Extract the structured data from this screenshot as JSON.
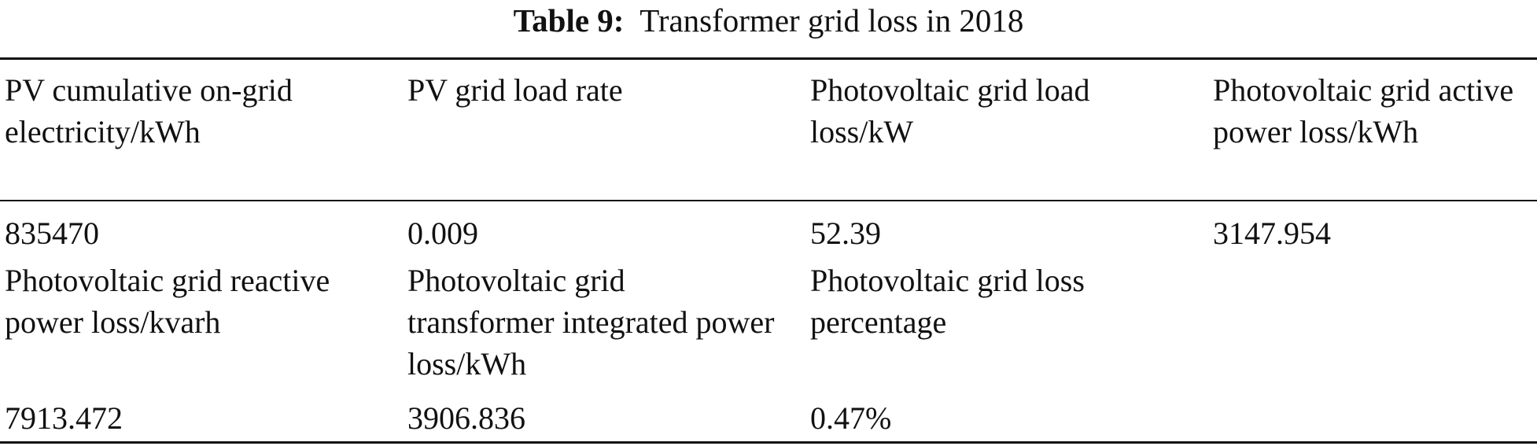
{
  "caption": {
    "label": "Table 9:",
    "title": "Transformer grid loss in 2018"
  },
  "table": {
    "header_row_1": [
      "PV cumulative on-grid electricity/kWh",
      "PV grid load rate",
      "Photovoltaic grid load loss/kW",
      "Photovoltaic grid active power loss/kWh"
    ],
    "value_row_1": [
      "835470",
      "0.009",
      "52.39",
      "3147.954"
    ],
    "header_row_2": [
      "Photovoltaic grid reactive power loss/kvarh",
      "Photovoltaic grid transformer integrated power loss/kWh",
      "Photovoltaic grid loss percentage"
    ],
    "value_row_2": [
      "7913.472",
      "3906.836",
      "0.47%"
    ]
  }
}
